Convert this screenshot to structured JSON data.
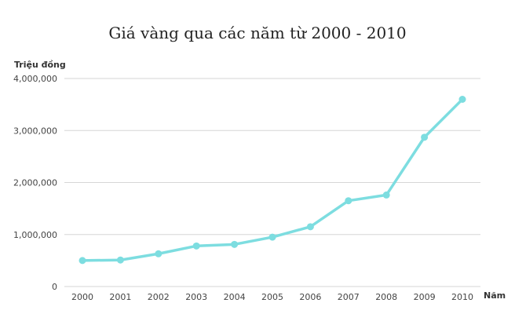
{
  "colors": {
    "series": "#7ddde0",
    "grid": "#d6d6d6"
  },
  "chart_data": {
    "type": "line",
    "title": "Giá vàng qua các năm từ 2000 - 2010",
    "ylabel": "Triệu đồng",
    "xlabel": "Năm",
    "categories": [
      "2000",
      "2001",
      "2002",
      "2003",
      "2004",
      "2005",
      "2006",
      "2007",
      "2008",
      "2009",
      "2010"
    ],
    "series": [
      {
        "values": [
          500000,
          510000,
          630000,
          780000,
          810000,
          950000,
          1150000,
          1650000,
          1760000,
          2870000,
          3600000
        ]
      }
    ],
    "ylim": [
      0,
      4000000
    ],
    "yticks": [
      0,
      1000000,
      2000000,
      3000000,
      4000000
    ],
    "ytick_labels": [
      "0",
      "1,000,000",
      "2,000,000",
      "3,000,000",
      "4,000,000"
    ],
    "grid": true,
    "legend": "none"
  }
}
